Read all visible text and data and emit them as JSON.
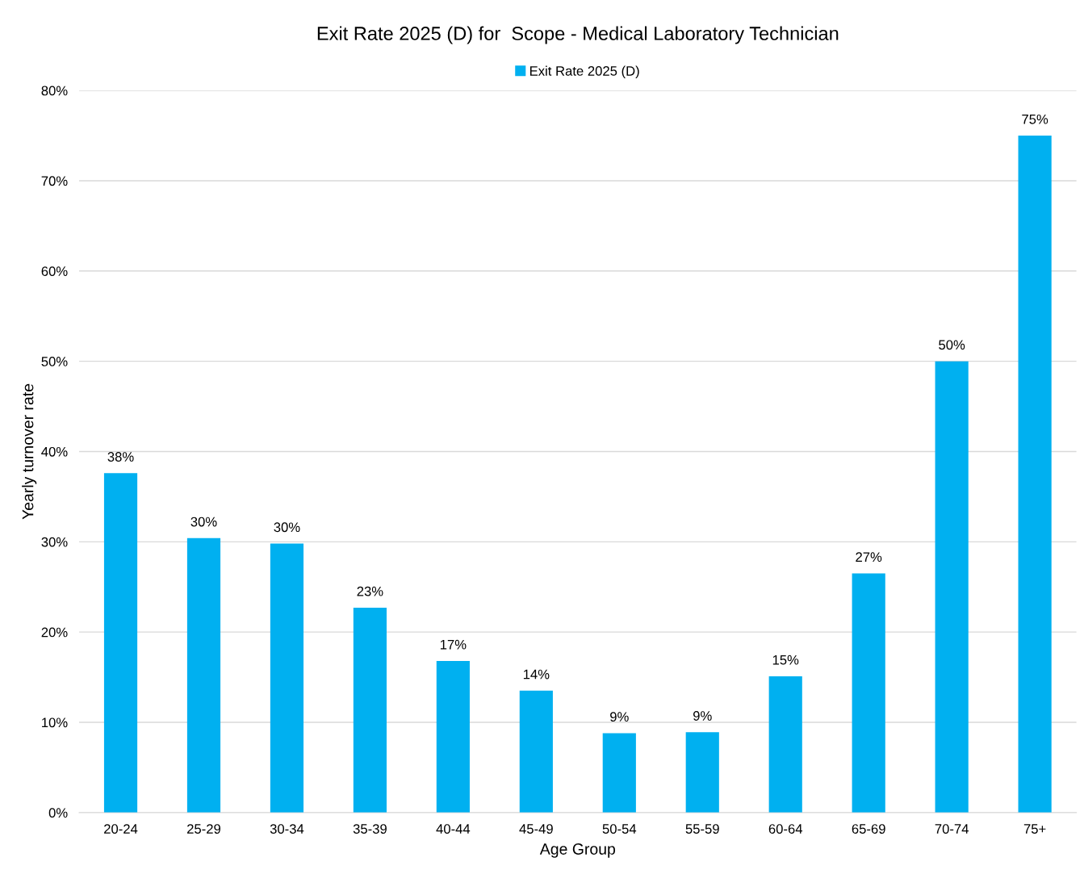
{
  "chart_data": {
    "type": "bar",
    "title": "Exit Rate 2025 (D) for  Scope - Medical Laboratory Technician",
    "xlabel": "Age Group",
    "ylabel": "Yearly turnover rate",
    "categories": [
      "20-24",
      "25-29",
      "30-34",
      "35-39",
      "40-44",
      "45-49",
      "50-54",
      "55-59",
      "60-64",
      "65-69",
      "70-74",
      "75+"
    ],
    "series": [
      {
        "name": "Exit Rate 2025 (D)",
        "color": "#00b0f0",
        "values": [
          37.6,
          30.4,
          29.8,
          22.7,
          16.8,
          13.5,
          8.8,
          8.9,
          15.1,
          26.5,
          50.0,
          75.0
        ],
        "value_labels": [
          "38%",
          "30%",
          "30%",
          "23%",
          "17%",
          "14%",
          "9%",
          "9%",
          "15%",
          "27%",
          "50%",
          "75%"
        ]
      }
    ],
    "ylim": [
      0,
      80
    ],
    "yticks": [
      {
        "value": 0,
        "label": "0%"
      },
      {
        "value": 10,
        "label": "10%"
      },
      {
        "value": 20,
        "label": "20%"
      },
      {
        "value": 30,
        "label": "30%"
      },
      {
        "value": 40,
        "label": "40%"
      },
      {
        "value": 50,
        "label": "50%"
      },
      {
        "value": 60,
        "label": "60%"
      },
      {
        "value": 70,
        "label": "70%"
      },
      {
        "value": 80,
        "label": "80%"
      }
    ],
    "grid": "y",
    "legend": "top"
  }
}
